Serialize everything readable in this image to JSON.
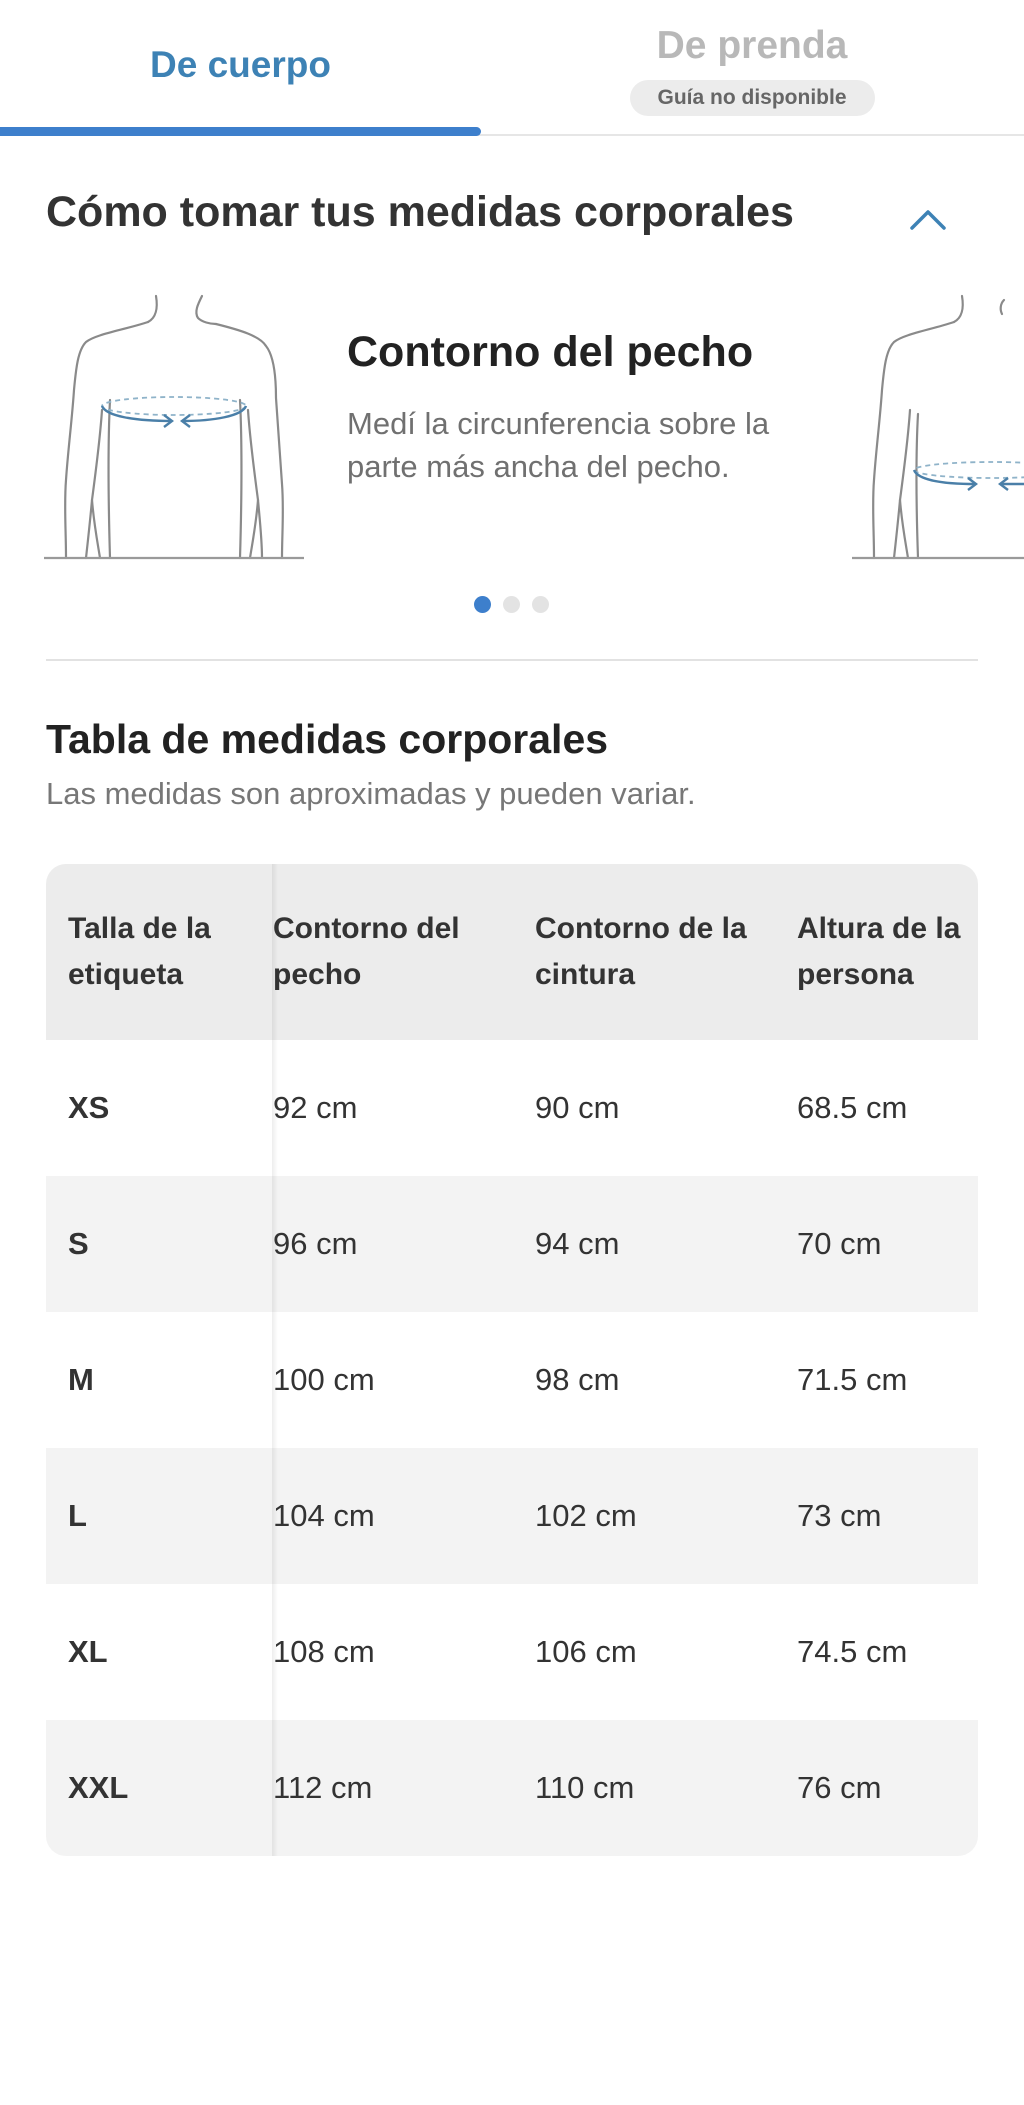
{
  "tabs": {
    "active": {
      "label": "De cuerpo"
    },
    "inactive": {
      "label": "De prenda",
      "badge": "Guía no disponible"
    }
  },
  "howto": {
    "title": "Cómo tomar tus medidas corporales",
    "collapse_icon": "chevron-up-icon",
    "slide": {
      "title": "Contorno del pecho",
      "description": "Medí la circunferencia sobre la parte más ancha del pecho."
    },
    "dots": {
      "count": 3,
      "active_index": 0
    }
  },
  "size_table": {
    "title": "Tabla de medidas corporales",
    "subtitle": "Las medidas son aproximadas y pueden variar.",
    "headers": [
      "Talla de la etiqueta",
      "Contorno del pecho",
      "Contorno de la cintura",
      "Altura de la persona"
    ],
    "rows": [
      [
        "XS",
        "92 cm",
        "90 cm",
        "68.5 cm"
      ],
      [
        "S",
        "96 cm",
        "94 cm",
        "70 cm"
      ],
      [
        "M",
        "100 cm",
        "98 cm",
        "71.5 cm"
      ],
      [
        "L",
        "104 cm",
        "102 cm",
        "73 cm"
      ],
      [
        "XL",
        "108 cm",
        "106 cm",
        "74.5 cm"
      ],
      [
        "XXL",
        "112 cm",
        "110 cm",
        "76 cm"
      ]
    ]
  },
  "colors": {
    "accent": "#3d7fcc",
    "tab_text_active": "#3d82b5",
    "tab_text_inactive": "#b8b8b8",
    "header_bg": "#ececec",
    "row_shaded": "#f3f3f3",
    "measure_line": "#4a7fa8"
  }
}
